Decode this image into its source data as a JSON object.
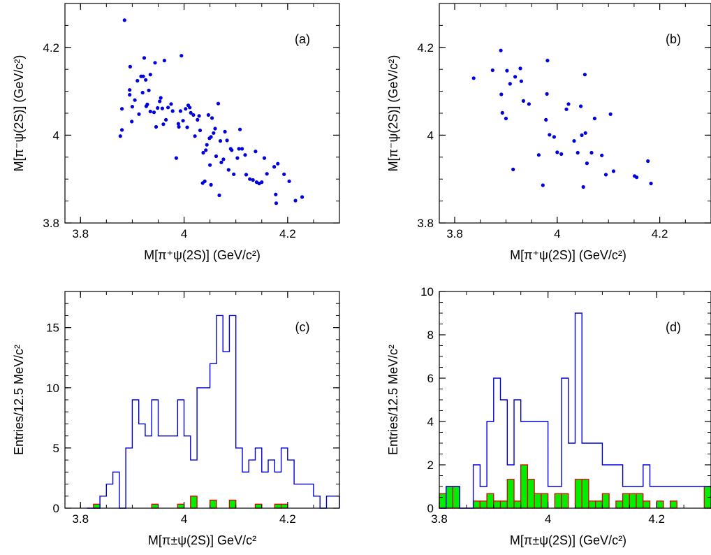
{
  "chart_data": [
    {
      "panel": "(a)",
      "type": "scatter",
      "xlabel": "M[π⁺ψ(2S)] (GeV/c²)",
      "ylabel": "M[π⁻ψ(2S)] (GeV/c²)",
      "xlim": [
        3.77,
        4.3
      ],
      "ylim": [
        3.8,
        4.3
      ],
      "xticks": [
        "3.8",
        "4",
        "4.2"
      ],
      "yticks": [
        "3.8",
        "4",
        "4.2"
      ],
      "color": "#0000dd",
      "points": [
        [
          3.885,
          4.262
        ],
        [
          3.88,
          4.06
        ],
        [
          3.877,
          3.998
        ],
        [
          3.88,
          4.012
        ],
        [
          3.896,
          4.156
        ],
        [
          3.895,
          4.103
        ],
        [
          3.895,
          4.092
        ],
        [
          3.899,
          4.031
        ],
        [
          3.9,
          4.065
        ],
        [
          3.905,
          4.08
        ],
        [
          3.91,
          4.124
        ],
        [
          3.913,
          4.048
        ],
        [
          3.917,
          4.134
        ],
        [
          3.92,
          4.097
        ],
        [
          3.923,
          4.176
        ],
        [
          3.921,
          4.134
        ],
        [
          3.926,
          4.126
        ],
        [
          3.927,
          4.066
        ],
        [
          3.929,
          4.07
        ],
        [
          3.932,
          4.102
        ],
        [
          3.935,
          4.054
        ],
        [
          3.935,
          4.138
        ],
        [
          3.942,
          4.052
        ],
        [
          3.944,
          4.165
        ],
        [
          3.946,
          4.019
        ],
        [
          3.949,
          4.062
        ],
        [
          3.953,
          4.077
        ],
        [
          3.955,
          4.085
        ],
        [
          3.96,
          4.025
        ],
        [
          3.958,
          4.061
        ],
        [
          3.962,
          4.17
        ],
        [
          3.965,
          4.035
        ],
        [
          3.969,
          4.063
        ],
        [
          3.975,
          4.071
        ],
        [
          3.978,
          4.055
        ],
        [
          3.985,
          3.948
        ],
        [
          3.989,
          4.026
        ],
        [
          3.99,
          4.019
        ],
        [
          3.993,
          4.055
        ],
        [
          3.995,
          4.181
        ],
        [
          3.998,
          4.033
        ],
        [
          4.003,
          4.06
        ],
        [
          4.006,
          4.018
        ],
        [
          4.011,
          4.063
        ],
        [
          4.008,
          4.068
        ],
        [
          4.013,
          4.051
        ],
        [
          4.018,
          4.046
        ],
        [
          4.021,
          3.998
        ],
        [
          4.026,
          4.035
        ],
        [
          4.029,
          4.044
        ],
        [
          4.031,
          4.011
        ],
        [
          4.036,
          3.891
        ],
        [
          4.037,
          3.96
        ],
        [
          4.04,
          3.895
        ],
        [
          4.042,
          3.966
        ],
        [
          4.044,
          3.978
        ],
        [
          4.047,
          4.046
        ],
        [
          4.049,
          3.993
        ],
        [
          4.05,
          3.932
        ],
        [
          4.052,
          3.996
        ],
        [
          4.054,
          4.039
        ],
        [
          4.052,
          3.887
        ],
        [
          4.057,
          4.005
        ],
        [
          4.06,
          4.015
        ],
        [
          4.062,
          3.952
        ],
        [
          4.066,
          4.072
        ],
        [
          4.068,
          3.863
        ],
        [
          4.07,
          3.987
        ],
        [
          4.072,
          3.938
        ],
        [
          4.076,
          3.945
        ],
        [
          4.079,
          4.008
        ],
        [
          4.083,
          3.988
        ],
        [
          4.086,
          3.921
        ],
        [
          4.09,
          3.969
        ],
        [
          4.092,
          3.966
        ],
        [
          4.096,
          3.911
        ],
        [
          4.103,
          3.948
        ],
        [
          4.106,
          3.969
        ],
        [
          4.108,
          4.013
        ],
        [
          4.112,
          3.969
        ],
        [
          4.118,
          3.955
        ],
        [
          4.12,
          3.91
        ],
        [
          4.127,
          3.9
        ],
        [
          4.133,
          3.898
        ],
        [
          4.138,
          3.963
        ],
        [
          4.14,
          3.893
        ],
        [
          4.145,
          3.89
        ],
        [
          4.15,
          3.893
        ],
        [
          4.155,
          3.948
        ],
        [
          4.16,
          3.912
        ],
        [
          4.174,
          3.928
        ],
        [
          4.177,
          3.865
        ],
        [
          4.178,
          3.845
        ],
        [
          4.181,
          3.935
        ],
        [
          4.193,
          3.911
        ],
        [
          4.203,
          3.895
        ],
        [
          4.215,
          3.851
        ],
        [
          4.228,
          3.859
        ]
      ]
    },
    {
      "panel": "(b)",
      "type": "scatter",
      "xlabel": "M[π⁺ψ(2S)] (GeV/c²)",
      "ylabel": "M[π⁻ψ(2S)] (GeV/c²)",
      "xlim": [
        3.77,
        4.3
      ],
      "ylim": [
        3.8,
        4.3
      ],
      "xticks": [
        "3.8",
        "4",
        "4.2"
      ],
      "yticks": [
        "3.8",
        "4",
        "4.2"
      ],
      "color": "#0000dd",
      "points": [
        [
          3.837,
          4.13
        ],
        [
          3.874,
          4.148
        ],
        [
          3.89,
          4.193
        ],
        [
          3.891,
          4.093
        ],
        [
          3.893,
          4.051
        ],
        [
          3.9,
          4.038
        ],
        [
          3.902,
          4.147
        ],
        [
          3.908,
          4.117
        ],
        [
          3.914,
          3.922
        ],
        [
          3.918,
          4.133
        ],
        [
          3.928,
          4.152
        ],
        [
          3.93,
          4.123
        ],
        [
          3.934,
          4.078
        ],
        [
          3.945,
          4.071
        ],
        [
          3.964,
          3.955
        ],
        [
          3.972,
          3.886
        ],
        [
          3.978,
          4.035
        ],
        [
          3.98,
          4.094
        ],
        [
          3.981,
          4.17
        ],
        [
          3.985,
          4.001
        ],
        [
          3.994,
          3.996
        ],
        [
          4.0,
          3.961
        ],
        [
          4.008,
          3.957
        ],
        [
          4.018,
          4.059
        ],
        [
          4.022,
          4.071
        ],
        [
          4.033,
          3.987
        ],
        [
          4.04,
          3.96
        ],
        [
          4.046,
          4.066
        ],
        [
          4.048,
          4.0
        ],
        [
          4.051,
          3.882
        ],
        [
          4.054,
          4.138
        ],
        [
          4.055,
          4.005
        ],
        [
          4.058,
          3.936
        ],
        [
          4.067,
          3.96
        ],
        [
          4.073,
          4.038
        ],
        [
          4.087,
          3.954
        ],
        [
          4.095,
          3.91
        ],
        [
          4.104,
          4.048
        ],
        [
          4.11,
          3.918
        ],
        [
          4.151,
          3.907
        ],
        [
          4.155,
          3.904
        ],
        [
          4.177,
          3.941
        ],
        [
          4.183,
          3.89
        ]
      ]
    },
    {
      "panel": "(c)",
      "type": "histogram",
      "xlabel": "M[π±ψ(2S)] GeV/c²",
      "ylabel": "Entries/12.5 MeV/c²",
      "xlim": [
        3.77,
        4.3
      ],
      "ylim": [
        0,
        18
      ],
      "xticks": [
        "3.8",
        "4",
        "4.2"
      ],
      "yticks": [
        "0",
        "5",
        "10",
        "15"
      ],
      "bin_start": 3.8125,
      "bin_width": 0.0125,
      "series": [
        {
          "color": "#0000dd",
          "fill": "none",
          "values": [
            0,
            0,
            1,
            2,
            3,
            0,
            5,
            9,
            7,
            6,
            9,
            6,
            6,
            6,
            9,
            6,
            4,
            10,
            10,
            12,
            16,
            13,
            16,
            5,
            3,
            4,
            5,
            3,
            4,
            3,
            5,
            4,
            2,
            2,
            2,
            1,
            0,
            1,
            1,
            0,
            1
          ]
        },
        {
          "color": "#dd0000",
          "fill": "#00ee00",
          "values": [
            0,
            0.33,
            0,
            0,
            0,
            0,
            0,
            0,
            0,
            0,
            0.33,
            0,
            0,
            0,
            0.33,
            0,
            1,
            0,
            0,
            0.67,
            0,
            0,
            0.67,
            0,
            0,
            0,
            0.33,
            0,
            0,
            0.33,
            0.33,
            0,
            0,
            0,
            0,
            0,
            0,
            0,
            0,
            0,
            0
          ]
        }
      ]
    },
    {
      "panel": "(d)",
      "type": "histogram",
      "xlabel": "M[π±ψ(2S)] (GeV/c²)",
      "ylabel": "Entries/12.5 MeV/c²",
      "xlim": [
        3.8,
        4.3
      ],
      "ylim": [
        0,
        10
      ],
      "xticks": [
        "3.8",
        "4",
        "4.2"
      ],
      "yticks": [
        "0",
        "2",
        "4",
        "6",
        "8",
        "10"
      ],
      "bin_start": 3.8,
      "bin_width": 0.0125,
      "series": [
        {
          "color": "#0000dd",
          "fill": "none",
          "values": [
            0,
            1,
            1,
            0,
            0,
            2,
            1,
            4,
            6,
            5,
            2,
            5,
            4,
            4,
            4,
            4,
            1,
            1,
            6,
            3,
            9,
            3,
            3,
            3,
            2,
            2,
            2,
            1,
            1,
            1,
            2,
            1,
            1,
            1,
            1,
            1,
            1,
            1,
            1,
            1
          ]
        },
        {
          "color": "#dd0000",
          "fill": "#00ee00",
          "values": [
            0.67,
            1,
            1,
            0,
            0,
            0.33,
            0.33,
            0.67,
            0.33,
            0.33,
            1.33,
            0.33,
            2,
            1.33,
            0.67,
            0.67,
            0,
            0.67,
            0.67,
            0,
            1.33,
            1.33,
            0.33,
            0.33,
            0.67,
            0,
            0.33,
            0.67,
            0.67,
            0.67,
            0.33,
            0,
            0.33,
            0,
            0.33,
            0,
            0,
            0,
            0,
            1
          ]
        }
      ]
    }
  ]
}
